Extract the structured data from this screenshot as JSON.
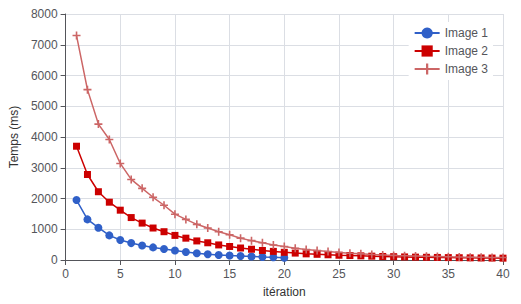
{
  "chart_data": {
    "type": "line",
    "xlabel": "itération",
    "ylabel": "Temps (ms)",
    "xlim": [
      0,
      40
    ],
    "ylim": [
      0,
      8000
    ],
    "xticks": [
      0,
      5,
      10,
      15,
      20,
      25,
      30,
      35,
      40
    ],
    "yticks": [
      0,
      1000,
      2000,
      3000,
      4000,
      5000,
      6000,
      7000,
      8000
    ],
    "grid": true,
    "legend": "upper right",
    "series": [
      {
        "name": "Image 1",
        "color": "#3060c8",
        "marker": "circle",
        "line_style": "solid",
        "x": [
          1,
          2,
          3,
          4,
          5,
          6,
          7,
          8,
          9,
          10,
          11,
          12,
          13,
          14,
          15,
          16,
          17,
          18,
          19,
          20
        ],
        "values": [
          1950,
          1320,
          1050,
          800,
          650,
          550,
          470,
          410,
          360,
          310,
          260,
          220,
          185,
          165,
          145,
          130,
          115,
          100,
          88,
          75
        ]
      },
      {
        "name": "Image 2",
        "color": "#cc0000",
        "marker": "square",
        "line_style": "solid",
        "x": [
          1,
          2,
          3,
          4,
          5,
          6,
          7,
          8,
          9,
          10,
          11,
          12,
          13,
          14,
          15,
          16,
          17,
          18,
          19,
          20,
          21,
          22,
          23,
          24,
          25,
          26,
          27,
          28,
          29,
          30,
          31,
          32,
          33,
          34,
          35,
          36,
          37,
          38,
          39,
          40
        ],
        "values": [
          3700,
          2780,
          2220,
          1880,
          1620,
          1380,
          1200,
          1040,
          920,
          800,
          710,
          620,
          560,
          490,
          440,
          390,
          350,
          310,
          280,
          250,
          225,
          200,
          185,
          170,
          155,
          145,
          135,
          125,
          115,
          108,
          100,
          93,
          88,
          83,
          78,
          74,
          70,
          66,
          63,
          60
        ]
      },
      {
        "name": "Image 3",
        "color": "#cc6666",
        "marker": "plus",
        "line_style": "solid",
        "x": [
          1,
          2,
          3,
          4,
          5,
          6,
          7,
          8,
          9,
          10,
          11,
          12,
          13,
          14,
          15,
          16,
          17,
          18,
          19,
          20,
          21,
          22,
          23,
          24,
          25,
          26,
          27,
          28,
          29,
          30,
          31,
          32,
          33,
          34,
          35,
          36,
          37,
          38,
          39,
          40
        ],
        "values": [
          7300,
          5540,
          4420,
          3920,
          3140,
          2620,
          2330,
          2040,
          1780,
          1490,
          1320,
          1160,
          1040,
          920,
          820,
          710,
          630,
          560,
          490,
          440,
          380,
          340,
          305,
          275,
          245,
          220,
          200,
          180,
          165,
          150,
          140,
          130,
          120,
          112,
          104,
          97,
          92,
          88,
          83,
          79
        ]
      }
    ]
  }
}
